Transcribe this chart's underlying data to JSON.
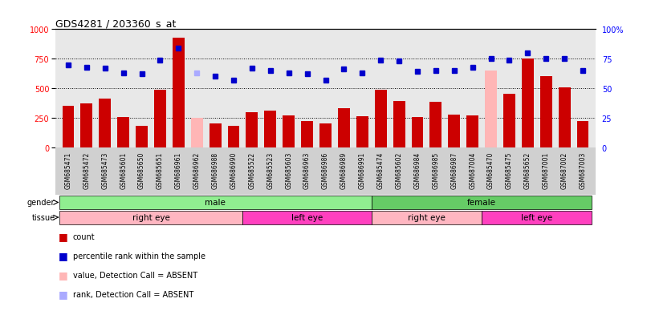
{
  "title": "GDS4281 / 203360_s_at",
  "samples": [
    "GSM685471",
    "GSM685472",
    "GSM685473",
    "GSM685601",
    "GSM685650",
    "GSM685651",
    "GSM686961",
    "GSM686962",
    "GSM686988",
    "GSM686990",
    "GSM685522",
    "GSM685523",
    "GSM685603",
    "GSM686963",
    "GSM686986",
    "GSM686989",
    "GSM686991",
    "GSM685474",
    "GSM685602",
    "GSM686984",
    "GSM686985",
    "GSM686987",
    "GSM687004",
    "GSM685470",
    "GSM685475",
    "GSM685652",
    "GSM687001",
    "GSM687002",
    "GSM687003"
  ],
  "count_values": [
    350,
    375,
    410,
    260,
    185,
    490,
    930,
    250,
    200,
    185,
    300,
    310,
    270,
    220,
    200,
    330,
    265,
    490,
    390,
    260,
    385,
    280,
    270,
    650,
    455,
    750,
    600,
    510,
    220
  ],
  "absent_bars": [
    7,
    23
  ],
  "percentile_values": [
    70,
    68,
    67,
    63,
    62,
    74,
    84,
    63,
    60,
    57,
    67,
    65,
    63,
    62,
    57,
    66,
    63,
    74,
    73,
    64,
    65,
    65,
    68,
    75,
    74,
    80,
    75,
    75,
    65
  ],
  "absent_rank_idx": [
    7
  ],
  "gender_groups": [
    {
      "label": "male",
      "start": 0,
      "end": 16,
      "color": "#90EE90"
    },
    {
      "label": "female",
      "start": 17,
      "end": 28,
      "color": "#66CC66"
    }
  ],
  "tissue_groups": [
    {
      "label": "right eye",
      "start": 0,
      "end": 9,
      "color": "#FFB6C1"
    },
    {
      "label": "left eye",
      "start": 10,
      "end": 16,
      "color": "#FF40BF"
    },
    {
      "label": "right eye",
      "start": 17,
      "end": 22,
      "color": "#FFB6C1"
    },
    {
      "label": "left eye",
      "start": 23,
      "end": 28,
      "color": "#FF40BF"
    }
  ],
  "bar_color": "#CC0000",
  "absent_bar_color": "#FFB6B6",
  "dot_color": "#0000CC",
  "absent_dot_color": "#AAAAFF",
  "ylim_left": [
    0,
    1000
  ],
  "ylim_right": [
    0,
    100
  ],
  "yticks_left": [
    0,
    250,
    500,
    750,
    1000
  ],
  "ytick_labels_left": [
    "0",
    "250",
    "500",
    "750",
    "1000"
  ],
  "yticks_right": [
    0,
    25,
    50,
    75,
    100
  ],
  "ytick_labels_right": [
    "0",
    "25",
    "50",
    "75",
    "100%"
  ],
  "grid_values": [
    250,
    500,
    750
  ],
  "bg_color": "#FFFFFF",
  "plot_bg_color": "#E8E8E8"
}
